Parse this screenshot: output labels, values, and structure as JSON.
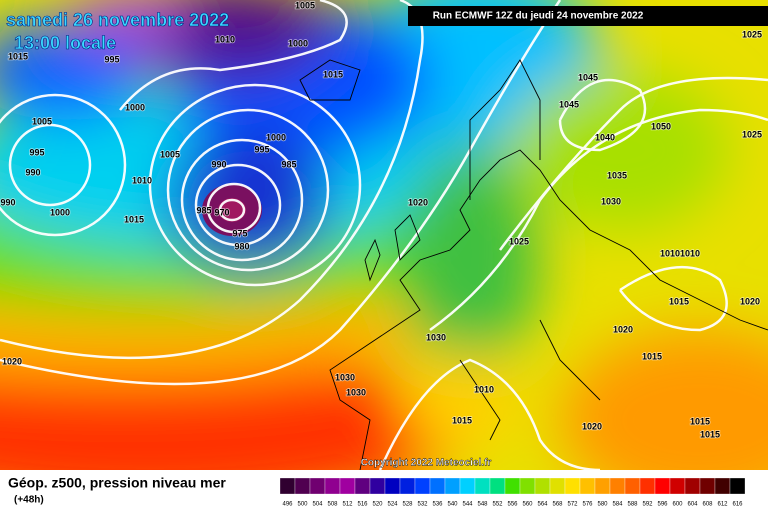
{
  "header": {
    "title": "samedi 26 novembre 2022",
    "time": "13:00 locale",
    "run": "Run ECMWF 12Z du jeudi 24 novembre 2022"
  },
  "map": {
    "copyright": "Copyright 2022 Meteociel.fr",
    "isobar_labels": [
      1015,
      995,
      1010,
      1005,
      1000,
      1015,
      1000,
      1005,
      995,
      990,
      990,
      1000,
      1010,
      1005,
      1015,
      990,
      1000,
      995,
      985,
      985,
      970,
      975,
      980,
      1020,
      1025,
      1045,
      1045,
      1040,
      1050,
      1035,
      1030,
      1010,
      1010,
      1015,
      1020,
      1020,
      1015,
      1030,
      1030,
      1030,
      1020,
      1010,
      1015,
      1020,
      1015,
      1015,
      1025,
      1025
    ]
  },
  "legend": {
    "title": "Géop. z500, pression niveau mer",
    "lead": "(+48h)",
    "scale": [
      496,
      500,
      504,
      508,
      512,
      516,
      520,
      524,
      528,
      532,
      536,
      540,
      544,
      548,
      552,
      556,
      560,
      564,
      568,
      572,
      576,
      580,
      584,
      588,
      592,
      596,
      600,
      604,
      608,
      612,
      616
    ]
  }
}
